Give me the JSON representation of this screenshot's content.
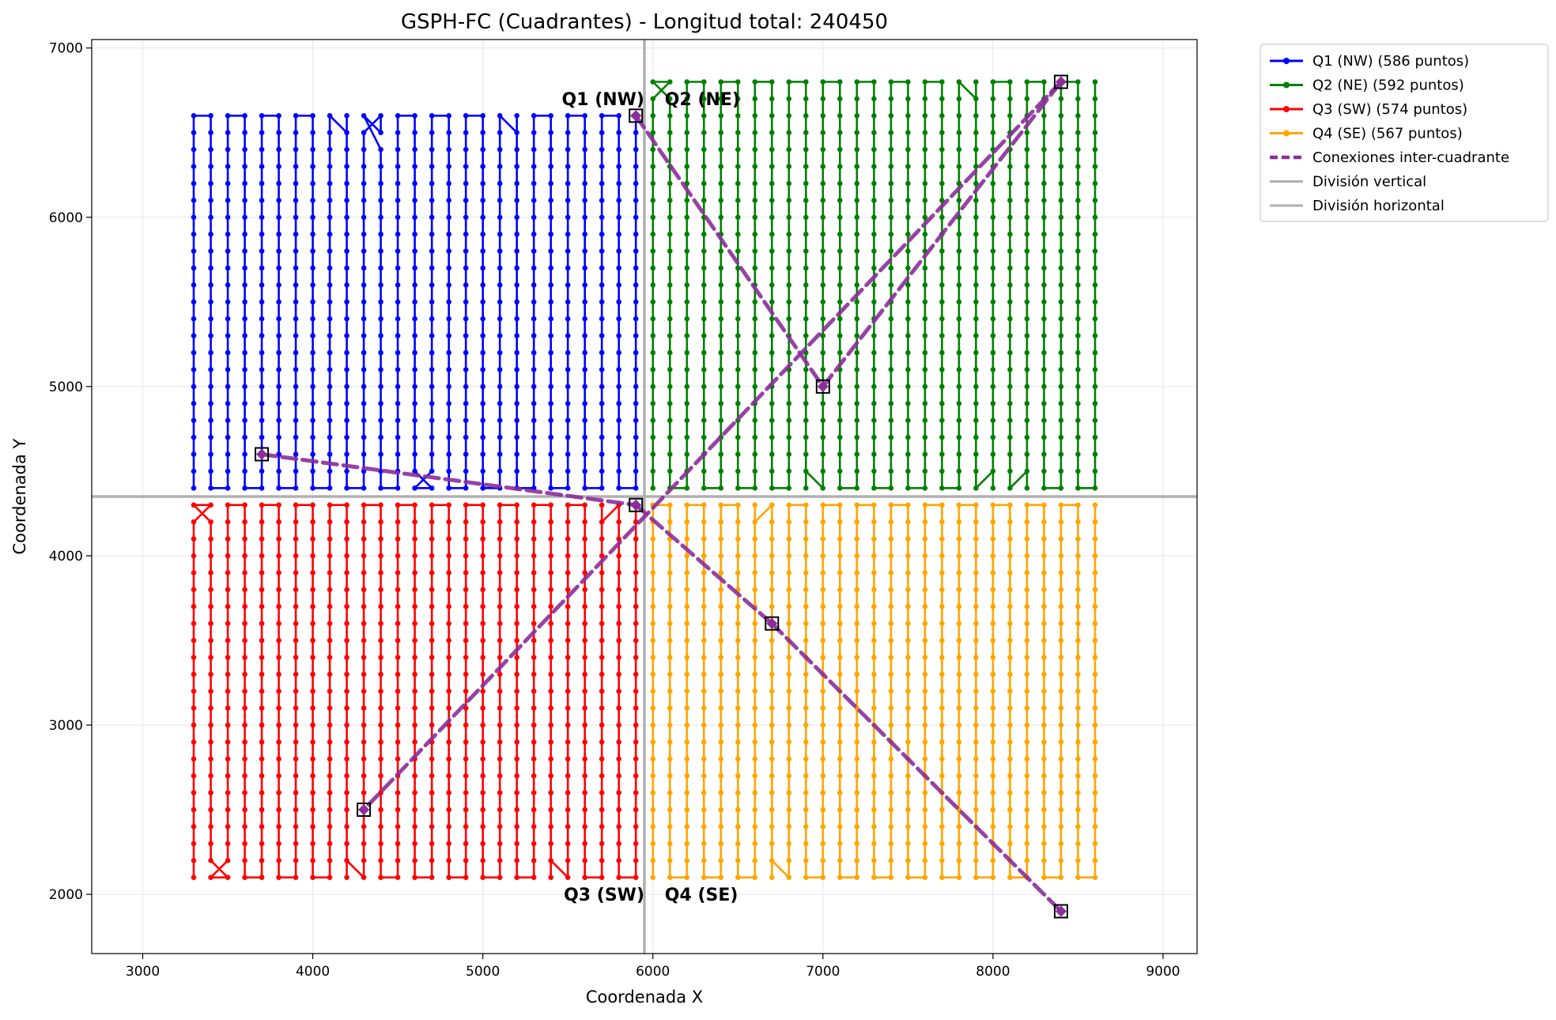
{
  "chart_data": {
    "type": "line",
    "title": "GSPH-FC (Cuadrantes) - Longitud total: 240450",
    "xlabel": "Coordenada X",
    "ylabel": "Coordenada Y",
    "xlim": [
      2700,
      9200
    ],
    "ylim": [
      1650,
      7050
    ],
    "xticks": [
      3000,
      4000,
      5000,
      6000,
      7000,
      8000,
      9000
    ],
    "yticks": [
      2000,
      3000,
      4000,
      5000,
      6000,
      7000
    ],
    "grid": true,
    "legend_position": "outside-right-top",
    "grid_x_range": [
      3300,
      8600
    ],
    "grid_y_range": [
      2100,
      6800
    ],
    "grid_step": 100,
    "quadrant_labels": [
      {
        "text": "Q1 (NW)",
        "x": 5950,
        "y": 6700,
        "anchor": "end"
      },
      {
        "text": "Q2 (NE)",
        "x": 6070,
        "y": 6700,
        "anchor": "start"
      },
      {
        "text": "Q3 (SW)",
        "x": 5950,
        "y": 2000,
        "anchor": "end"
      },
      {
        "text": "Q4 (SE)",
        "x": 6070,
        "y": 2000,
        "anchor": "start"
      }
    ],
    "divisions": {
      "vertical_x": 5950,
      "horizontal_y": 4350,
      "color": "#b0b0b0"
    },
    "series": [
      {
        "name": "Q1 (NW) (586 puntos)",
        "quadrant": "NW",
        "color": "#0000ff",
        "x_range": [
          3300,
          5900
        ],
        "y_range": [
          4400,
          6600
        ],
        "points": 586
      },
      {
        "name": "Q2 (NE) (592 puntos)",
        "quadrant": "NE",
        "color": "#008000",
        "x_range": [
          6000,
          8600
        ],
        "y_range": [
          4400,
          6800
        ],
        "points": 592
      },
      {
        "name": "Q3 (SW) (574 puntos)",
        "quadrant": "SW",
        "color": "#ff0000",
        "x_range": [
          3300,
          5900
        ],
        "y_range": [
          2100,
          4300
        ],
        "points": 574
      },
      {
        "name": "Q4 (SE) (567 puntos)",
        "quadrant": "SE",
        "color": "#ffa500",
        "x_range": [
          6000,
          8600
        ],
        "y_range": [
          2100,
          4300
        ],
        "points": 567
      }
    ],
    "connections": {
      "name": "Conexiones inter-cuadrante",
      "color": "#8b2e9b",
      "segments": [
        [
          [
            3700,
            4600
          ],
          [
            5900,
            4300
          ]
        ],
        [
          [
            5900,
            4300
          ],
          [
            6700,
            3600
          ]
        ],
        [
          [
            6700,
            3600
          ],
          [
            8400,
            1900
          ]
        ],
        [
          [
            5900,
            6600
          ],
          [
            7000,
            5000
          ]
        ],
        [
          [
            7000,
            5000
          ],
          [
            8400,
            6800
          ]
        ],
        [
          [
            8400,
            6800
          ],
          [
            4300,
            2500
          ]
        ]
      ],
      "endpoints": [
        [
          3700,
          4600
        ],
        [
          5900,
          4300
        ],
        [
          6700,
          3600
        ],
        [
          8400,
          1900
        ],
        [
          5900,
          6600
        ],
        [
          7000,
          5000
        ],
        [
          8400,
          6800
        ],
        [
          4300,
          2500
        ]
      ]
    },
    "legend": [
      {
        "label": "Q1 (NW) (586 puntos)",
        "color": "#0000ff",
        "style": "line-marker"
      },
      {
        "label": "Q2 (NE) (592 puntos)",
        "color": "#008000",
        "style": "line-marker"
      },
      {
        "label": "Q3 (SW) (574 puntos)",
        "color": "#ff0000",
        "style": "line-marker"
      },
      {
        "label": "Q4 (SE) (567 puntos)",
        "color": "#ffa500",
        "style": "line-marker"
      },
      {
        "label": "Conexiones inter-cuadrante",
        "color": "#8b2e9b",
        "style": "dashed"
      },
      {
        "label": "División vertical",
        "color": "#b0b0b0",
        "style": "line"
      },
      {
        "label": "División horizontal",
        "color": "#b0b0b0",
        "style": "line"
      }
    ]
  }
}
